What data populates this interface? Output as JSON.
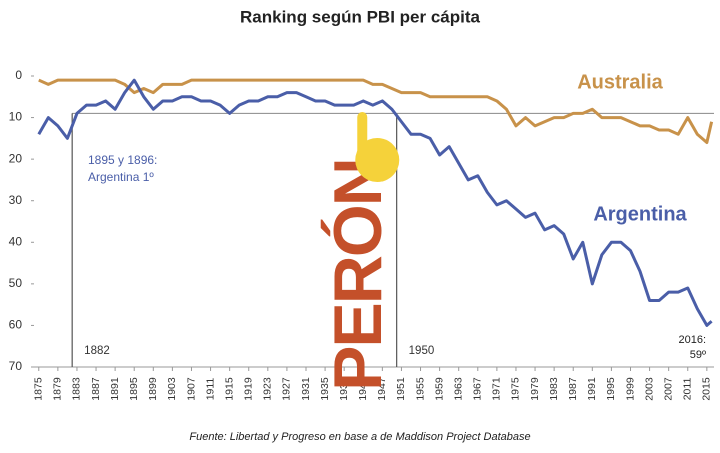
{
  "chart_data": {
    "type": "line",
    "title": "Ranking según PBI per cápita",
    "x": [
      1875,
      1877,
      1879,
      1881,
      1883,
      1885,
      1887,
      1889,
      1891,
      1893,
      1895,
      1897,
      1899,
      1901,
      1903,
      1905,
      1907,
      1909,
      1911,
      1913,
      1915,
      1917,
      1919,
      1921,
      1923,
      1925,
      1927,
      1929,
      1931,
      1933,
      1935,
      1937,
      1939,
      1941,
      1943,
      1945,
      1947,
      1949,
      1951,
      1953,
      1955,
      1957,
      1959,
      1961,
      1963,
      1965,
      1967,
      1969,
      1971,
      1973,
      1975,
      1977,
      1979,
      1981,
      1983,
      1985,
      1987,
      1989,
      1991,
      1993,
      1995,
      1997,
      1999,
      2001,
      2003,
      2005,
      2007,
      2009,
      2011,
      2013,
      2015,
      2016
    ],
    "series": [
      {
        "name": "Australia",
        "color": "#c8924a",
        "values": [
          1,
          2,
          1,
          1,
          1,
          1,
          1,
          1,
          1,
          2,
          4,
          3,
          4,
          2,
          2,
          2,
          1,
          1,
          1,
          1,
          1,
          1,
          1,
          1,
          1,
          1,
          1,
          1,
          1,
          1,
          1,
          1,
          1,
          1,
          1,
          2,
          2,
          3,
          4,
          4,
          4,
          5,
          5,
          5,
          5,
          5,
          5,
          5,
          6,
          8,
          12,
          10,
          12,
          11,
          10,
          10,
          9,
          9,
          8,
          10,
          10,
          10,
          11,
          12,
          12,
          13,
          13,
          14,
          10,
          14,
          16,
          11
        ]
      },
      {
        "name": "Argentina",
        "color": "#4a5ea8",
        "values": [
          14,
          10,
          12,
          15,
          9,
          7,
          7,
          6,
          8,
          4,
          1,
          5,
          8,
          6,
          6,
          5,
          5,
          6,
          6,
          7,
          9,
          7,
          6,
          6,
          5,
          5,
          4,
          4,
          5,
          6,
          6,
          7,
          7,
          7,
          6,
          7,
          6,
          8,
          11,
          14,
          14,
          15,
          19,
          17,
          21,
          25,
          24,
          28,
          31,
          30,
          32,
          34,
          33,
          37,
          36,
          38,
          44,
          40,
          50,
          43,
          40,
          40,
          42,
          47,
          54,
          54,
          52,
          52,
          51,
          56,
          60,
          59
        ]
      }
    ],
    "xlim": [
      1874,
      2016.5
    ],
    "xticks": [
      1875,
      1879,
      1883,
      1887,
      1891,
      1895,
      1899,
      1903,
      1907,
      1911,
      1915,
      1919,
      1923,
      1927,
      1931,
      1935,
      1939,
      1943,
      1947,
      1951,
      1955,
      1959,
      1963,
      1967,
      1971,
      1975,
      1979,
      1983,
      1987,
      1991,
      1995,
      1999,
      2003,
      2007,
      2011,
      2015
    ],
    "ylim": [
      0,
      70
    ],
    "y_reversed": true,
    "yticks": [
      0,
      10,
      20,
      30,
      40,
      50,
      60,
      70
    ],
    "hline": 9,
    "vlines": [
      1882,
      1950
    ],
    "annotations": [
      [
        "1895 y 1896:",
        "Argentina 1º"
      ],
      [
        "2016:",
        "59º"
      ],
      "PERÓN"
    ],
    "source": "Fuente: Libertad y Progreso en  base a de Maddison Project Database"
  }
}
